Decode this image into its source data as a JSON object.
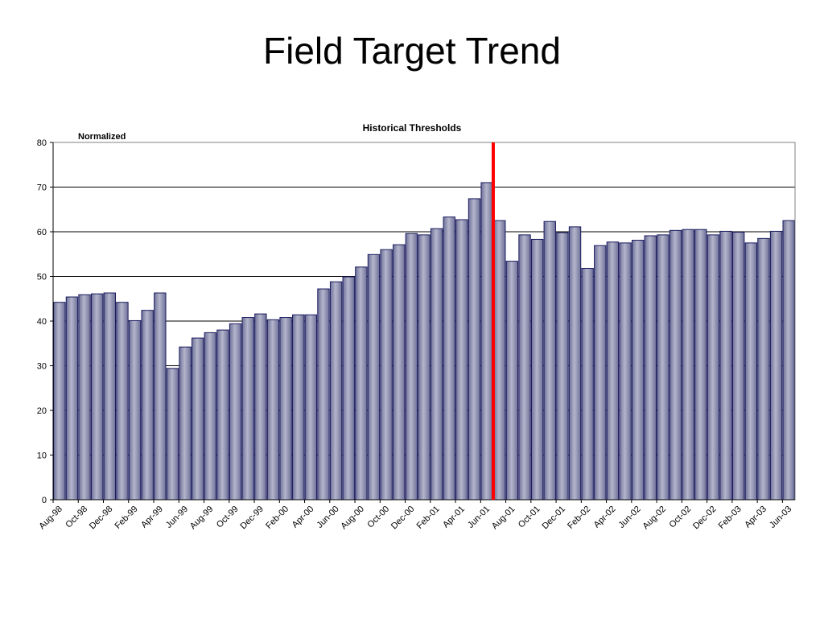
{
  "slide": {
    "title": "Field Target Trend"
  },
  "chart_data": {
    "type": "bar",
    "title": "Historical Thresholds",
    "subtitle": "Normalized",
    "xlabel": "",
    "ylabel": "",
    "ylim": [
      0,
      80
    ],
    "yticks": [
      0,
      10,
      20,
      30,
      40,
      50,
      60,
      70,
      80
    ],
    "grid": true,
    "bar_color": "#8E90AE",
    "bar_edge_color": "#1A1A5E",
    "marker_color": "#FF0000",
    "marker_after_category": "Jun-01",
    "categories": [
      "Aug-98",
      "Sep-98",
      "Oct-98",
      "Nov-98",
      "Dec-98",
      "Jan-99",
      "Feb-99",
      "Mar-99",
      "Apr-99",
      "May-99",
      "Jun-99",
      "Jul-99",
      "Aug-99",
      "Sep-99",
      "Oct-99",
      "Nov-99",
      "Dec-99",
      "Jan-00",
      "Feb-00",
      "Mar-00",
      "Apr-00",
      "May-00",
      "Jun-00",
      "Jul-00",
      "Aug-00",
      "Sep-00",
      "Oct-00",
      "Nov-00",
      "Dec-00",
      "Jan-01",
      "Feb-01",
      "Mar-01",
      "Apr-01",
      "May-01",
      "Jun-01",
      "Jul-01",
      "Aug-01",
      "Sep-01",
      "Oct-01",
      "Nov-01",
      "Dec-01",
      "Jan-02",
      "Feb-02",
      "Mar-02",
      "Apr-02",
      "May-02",
      "Jun-02",
      "Jul-02",
      "Aug-02",
      "Sep-02",
      "Oct-02",
      "Nov-02",
      "Dec-02",
      "Jan-03",
      "Feb-03",
      "Mar-03",
      "Apr-03",
      "May-03",
      "Jun-03"
    ],
    "tick_labels": [
      "Aug-98",
      "Oct-98",
      "Dec-98",
      "Feb-99",
      "Apr-99",
      "Jun-99",
      "Aug-99",
      "Oct-99",
      "Dec-99",
      "Feb-00",
      "Apr-00",
      "Jun-00",
      "Aug-00",
      "Oct-00",
      "Dec-00",
      "Feb-01",
      "Apr-01",
      "Jun-01",
      "Aug-01",
      "Oct-01",
      "Dec-01",
      "Feb-02",
      "Apr-02",
      "Jun-02",
      "Aug-02",
      "Oct-02",
      "Dec-02",
      "Feb-03",
      "Apr-03",
      "Jun-03"
    ],
    "values": [
      44.2,
      45.4,
      45.9,
      46.1,
      46.3,
      44.2,
      40.1,
      42.4,
      46.3,
      29.4,
      34.2,
      36.2,
      37.4,
      38.0,
      39.4,
      40.8,
      41.6,
      40.3,
      40.8,
      41.4,
      41.4,
      47.2,
      48.8,
      49.9,
      52.1,
      54.9,
      56.0,
      57.1,
      59.6,
      59.3,
      60.7,
      63.3,
      62.7,
      67.4,
      71.0,
      62.5,
      53.4,
      59.3,
      58.3,
      62.3,
      59.8,
      61.1,
      51.8,
      56.9,
      57.7,
      57.5,
      58.1,
      59.1,
      59.3,
      60.3,
      60.5,
      60.5,
      59.3,
      60.1,
      59.9,
      57.5,
      58.5,
      60.1,
      62.5
    ]
  }
}
